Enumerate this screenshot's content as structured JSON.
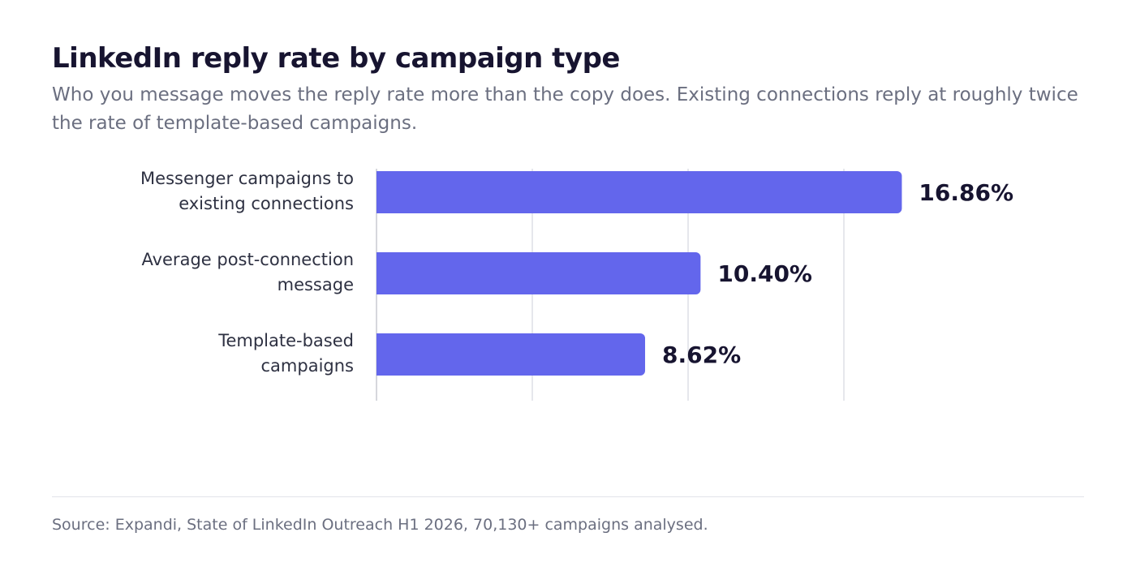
{
  "header": {
    "title": "LinkedIn reply rate by campaign type",
    "subtitle": "Who you message moves the reply rate more than the copy does. Existing connections reply at roughly twice the rate of template-based campaigns."
  },
  "footer": {
    "source": "Source: Expandi, State of LinkedIn Outreach H1 2026, 70,130+ campaigns analysed."
  },
  "colors": {
    "bar": "#6366ec",
    "grid": "#dddfe5",
    "axis": "#c8cad2"
  },
  "chart_data": {
    "type": "bar",
    "orientation": "horizontal",
    "categories": [
      [
        "Messenger campaigns to",
        "existing connections"
      ],
      [
        "Average post-connection",
        "message"
      ],
      [
        "Template-based",
        "campaigns"
      ]
    ],
    "values": [
      16.86,
      10.4,
      8.62
    ],
    "value_labels": [
      "16.86%",
      "10.40%",
      "8.62%"
    ],
    "xlim": [
      0,
      20
    ],
    "gridlines": [
      5,
      10,
      15
    ],
    "grid": true,
    "legend": "none",
    "title": "LinkedIn reply rate by campaign type",
    "xlabel": "",
    "ylabel": ""
  }
}
